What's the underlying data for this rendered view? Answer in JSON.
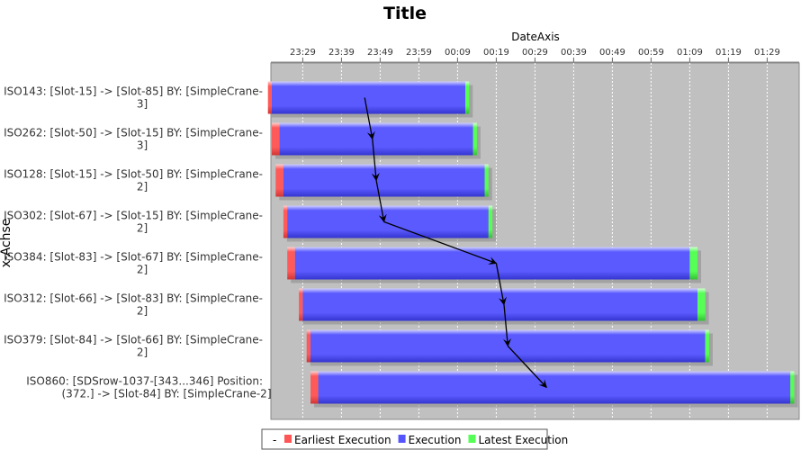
{
  "chart_data": {
    "type": "gantt",
    "title": "Title",
    "xlabel": "DateAxis",
    "ylabel": "x-Achse",
    "tick_labels": [
      "23:29",
      "23:39",
      "23:49",
      "23:59",
      "00:09",
      "00:19",
      "00:29",
      "00:39",
      "00:49",
      "00:59",
      "01:09",
      "01:19",
      "01:29"
    ],
    "x_range": [
      "23:20",
      "01:35"
    ],
    "grid": true,
    "legend_position": "bottom",
    "categories": [
      [
        "ISO143: [Slot-15] -> [Slot-85] BY: [SimpleCrane-",
        "3]"
      ],
      [
        "ISO262: [Slot-50] -> [Slot-15] BY: [SimpleCrane-",
        "3]"
      ],
      [
        "ISO128: [Slot-15] -> [Slot-50] BY: [SimpleCrane-",
        "2]"
      ],
      [
        "ISO302: [Slot-67] -> [Slot-15] BY: [SimpleCrane-",
        "2]"
      ],
      [
        "ISO384: [Slot-83] -> [Slot-67] BY: [SimpleCrane-",
        "2]"
      ],
      [
        "ISO312: [Slot-66] -> [Slot-83] BY: [SimpleCrane-",
        "2]"
      ],
      [
        "ISO379: [Slot-84] -> [Slot-66] BY: [SimpleCrane-",
        "2]"
      ],
      [
        "ISO860: [SDSrow-1037-[343...346]  Position:",
        "(372.] -> [Slot-84] BY: [SimpleCrane-2]"
      ]
    ],
    "series": [
      {
        "name": "Earliest Execution",
        "color": "#ff5555",
        "values": [
          [
            "23:20",
            "23:21"
          ],
          [
            "23:21",
            "23:23"
          ],
          [
            "23:22",
            "23:24"
          ],
          [
            "23:24",
            "23:25"
          ],
          [
            "23:25",
            "23:27"
          ],
          [
            "23:28",
            "23:29"
          ],
          [
            "23:30",
            "23:31"
          ],
          [
            "23:31",
            "23:33"
          ]
        ]
      },
      {
        "name": "Execution",
        "color": "#5555ff",
        "values": [
          [
            "23:21",
            "00:11"
          ],
          [
            "23:23",
            "00:13"
          ],
          [
            "23:24",
            "00:16"
          ],
          [
            "23:25",
            "00:17"
          ],
          [
            "23:27",
            "01:09"
          ],
          [
            "23:29",
            "01:11"
          ],
          [
            "23:31",
            "01:13"
          ],
          [
            "23:33",
            "01:35"
          ]
        ]
      },
      {
        "name": "Latest Execution",
        "color": "#55ff55",
        "values": [
          [
            "00:11",
            "00:12"
          ],
          [
            "00:13",
            "00:14"
          ],
          [
            "00:16",
            "00:17"
          ],
          [
            "00:17",
            "00:18"
          ],
          [
            "01:09",
            "01:11"
          ],
          [
            "01:11",
            "01:13"
          ],
          [
            "01:13",
            "01:14"
          ],
          [
            "01:35",
            "01:36"
          ]
        ]
      }
    ],
    "dependencies": [
      {
        "from": 0,
        "to": 1,
        "from_time": "23:45",
        "to_time": "23:47"
      },
      {
        "from": 1,
        "to": 2,
        "from_time": "23:47",
        "to_time": "23:48"
      },
      {
        "from": 2,
        "to": 3,
        "from_time": "23:48",
        "to_time": "23:50"
      },
      {
        "from": 3,
        "to": 4,
        "from_time": "23:50",
        "to_time": "00:19"
      },
      {
        "from": 4,
        "to": 5,
        "from_time": "00:19",
        "to_time": "00:21"
      },
      {
        "from": 5,
        "to": 6,
        "from_time": "00:21",
        "to_time": "00:22"
      },
      {
        "from": 6,
        "to": 7,
        "from_time": "00:22",
        "to_time": "00:32"
      }
    ],
    "legend_lead": "-",
    "colors": {
      "plot_bg": "#c0c0c0",
      "grid": "#ffffff",
      "arrow": "#000000"
    }
  }
}
